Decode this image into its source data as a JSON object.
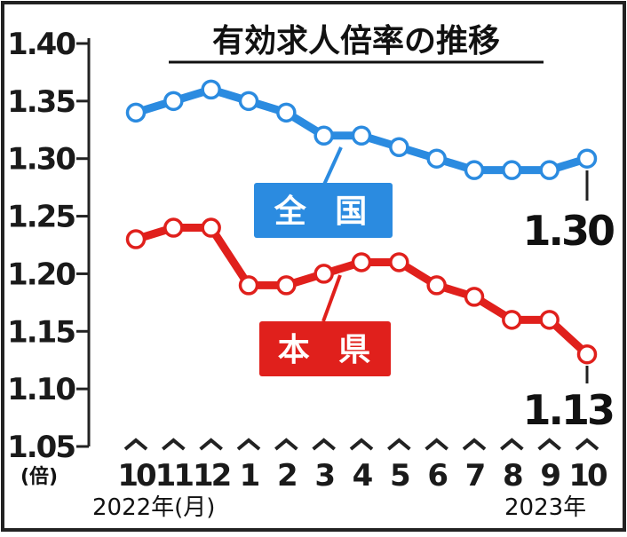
{
  "chart_data": {
    "type": "line",
    "title": "有効求人倍率の推移",
    "y_unit": "(倍)",
    "ylim": [
      1.05,
      1.4
    ],
    "yticks": [
      "1.40",
      "1.35",
      "1.30",
      "1.25",
      "1.20",
      "1.15",
      "1.10",
      "1.05"
    ],
    "categories": [
      "10",
      "11",
      "12",
      "1",
      "2",
      "3",
      "4",
      "5",
      "6",
      "7",
      "8",
      "9",
      "10"
    ],
    "x_start_label": "2022年(月)",
    "x_end_label": "2023年",
    "series": [
      {
        "name": "全 国",
        "color": "#2b8be0",
        "values": [
          1.34,
          1.35,
          1.36,
          1.35,
          1.34,
          1.32,
          1.32,
          1.31,
          1.3,
          1.29,
          1.29,
          1.29,
          1.3
        ],
        "end_label": "1.30"
      },
      {
        "name": "本 県",
        "color": "#e0201c",
        "values": [
          1.23,
          1.24,
          1.24,
          1.19,
          1.19,
          1.2,
          1.21,
          1.21,
          1.19,
          1.18,
          1.16,
          1.16,
          1.13
        ],
        "end_label": "1.13"
      }
    ],
    "grid": false,
    "legend": "inline tags near lines"
  }
}
